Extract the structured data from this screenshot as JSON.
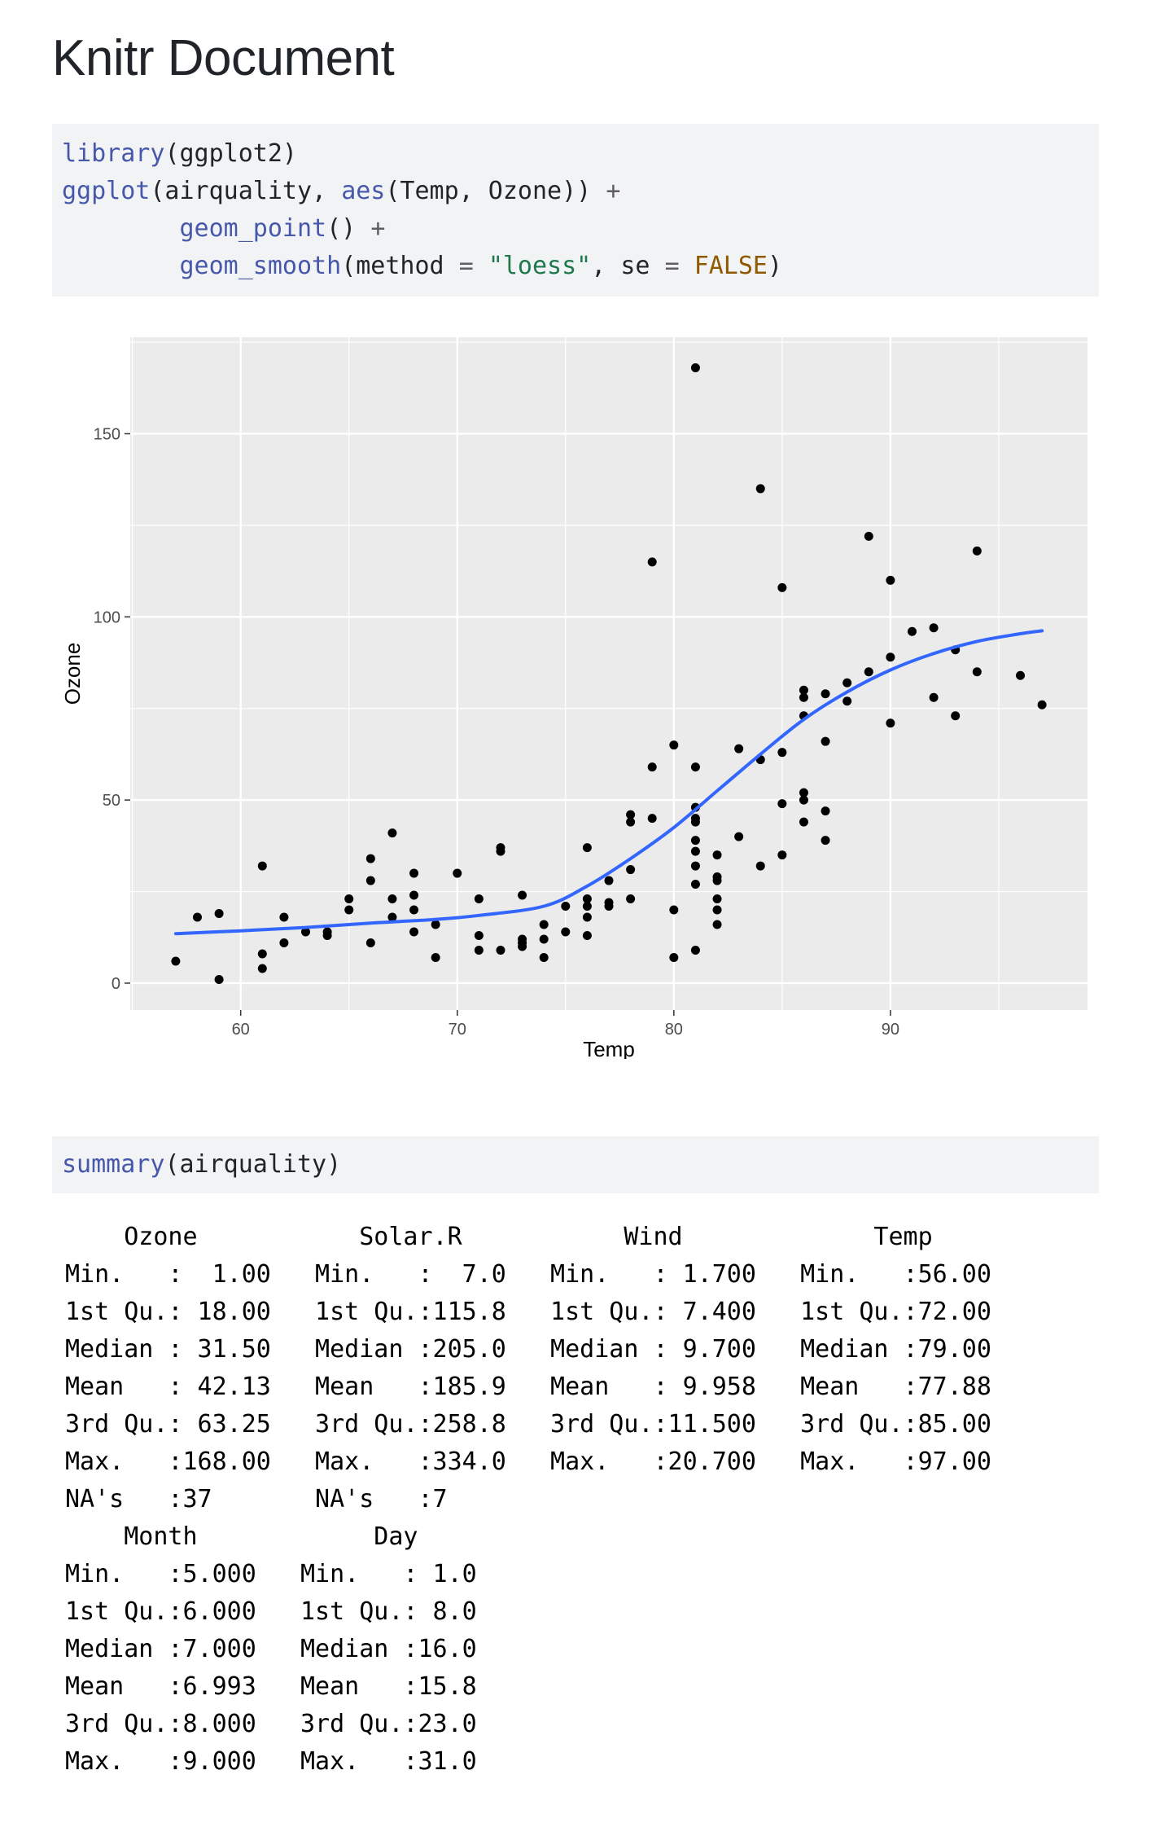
{
  "title": "Knitr Document",
  "code1": {
    "line1": {
      "fn": "library",
      "rest": "(ggplot2)"
    },
    "line2": {
      "fn1": "ggplot",
      "mid1": "(airquality, ",
      "fn2": "aes",
      "mid2": "(Temp, Ozone)) ",
      "plus": "+"
    },
    "line3": {
      "indent": "        ",
      "fn": "geom_point",
      "rest": "() ",
      "plus": "+"
    },
    "line4": {
      "indent": "        ",
      "fn": "geom_smooth",
      "a": "(method ",
      "eq1": "=",
      "b": " ",
      "str": "\"loess\"",
      "c": ", se ",
      "eq2": "=",
      "d": " ",
      "bool": "FALSE",
      "e": ")"
    }
  },
  "chart_data": {
    "type": "scatter",
    "xlabel": "Temp",
    "ylabel": "Ozone",
    "xlim": [
      54.9,
      99.1
    ],
    "ylim": [
      -7.35,
      176.35
    ],
    "xticks": [
      60,
      70,
      80,
      90
    ],
    "yticks": [
      0,
      50,
      100,
      150
    ],
    "xtick_labels": [
      "60",
      "70",
      "80",
      "90"
    ],
    "ytick_labels": [
      "0",
      "50",
      "100",
      "150"
    ],
    "grid": true,
    "points": [
      [
        57,
        6
      ],
      [
        58,
        18
      ],
      [
        59,
        1
      ],
      [
        59,
        19
      ],
      [
        61,
        32
      ],
      [
        61,
        8
      ],
      [
        61,
        4
      ],
      [
        62,
        18
      ],
      [
        62,
        11
      ],
      [
        63,
        14
      ],
      [
        64,
        14
      ],
      [
        64,
        13
      ],
      [
        65,
        20
      ],
      [
        65,
        23
      ],
      [
        66,
        34
      ],
      [
        66,
        28
      ],
      [
        66,
        11
      ],
      [
        67,
        41
      ],
      [
        67,
        23
      ],
      [
        67,
        18
      ],
      [
        68,
        30
      ],
      [
        68,
        24
      ],
      [
        68,
        20
      ],
      [
        68,
        14
      ],
      [
        69,
        16
      ],
      [
        69,
        7
      ],
      [
        70,
        30
      ],
      [
        71,
        23
      ],
      [
        71,
        13
      ],
      [
        71,
        9
      ],
      [
        72,
        37
      ],
      [
        72,
        36
      ],
      [
        72,
        9
      ],
      [
        73,
        24
      ],
      [
        73,
        12
      ],
      [
        73,
        11
      ],
      [
        73,
        10
      ],
      [
        74,
        16
      ],
      [
        74,
        12
      ],
      [
        74,
        7
      ],
      [
        75,
        21
      ],
      [
        75,
        14
      ],
      [
        76,
        37
      ],
      [
        76,
        23
      ],
      [
        76,
        21
      ],
      [
        76,
        18
      ],
      [
        76,
        13
      ],
      [
        77,
        28
      ],
      [
        77,
        22
      ],
      [
        77,
        21
      ],
      [
        78,
        46
      ],
      [
        78,
        44
      ],
      [
        78,
        31
      ],
      [
        78,
        23
      ],
      [
        79,
        115
      ],
      [
        79,
        59
      ],
      [
        79,
        45
      ],
      [
        80,
        65
      ],
      [
        80,
        20
      ],
      [
        80,
        7
      ],
      [
        81,
        168
      ],
      [
        81,
        59
      ],
      [
        81,
        48
      ],
      [
        81,
        45
      ],
      [
        81,
        44
      ],
      [
        81,
        39
      ],
      [
        81,
        36
      ],
      [
        81,
        32
      ],
      [
        81,
        27
      ],
      [
        81,
        9
      ],
      [
        82,
        35
      ],
      [
        82,
        29
      ],
      [
        82,
        28
      ],
      [
        82,
        23
      ],
      [
        82,
        20
      ],
      [
        82,
        16
      ],
      [
        83,
        64
      ],
      [
        83,
        40
      ],
      [
        84,
        135
      ],
      [
        84,
        61
      ],
      [
        84,
        32
      ],
      [
        85,
        108
      ],
      [
        85,
        63
      ],
      [
        85,
        49
      ],
      [
        85,
        35
      ],
      [
        86,
        80
      ],
      [
        86,
        78
      ],
      [
        86,
        73
      ],
      [
        86,
        52
      ],
      [
        86,
        50
      ],
      [
        86,
        44
      ],
      [
        87,
        79
      ],
      [
        87,
        66
      ],
      [
        87,
        47
      ],
      [
        87,
        39
      ],
      [
        88,
        82
      ],
      [
        88,
        77
      ],
      [
        89,
        122
      ],
      [
        89,
        85
      ],
      [
        90,
        110
      ],
      [
        90,
        89
      ],
      [
        90,
        71
      ],
      [
        91,
        96
      ],
      [
        92,
        97
      ],
      [
        92,
        78
      ],
      [
        93,
        91
      ],
      [
        93,
        73
      ],
      [
        94,
        118
      ],
      [
        94,
        85
      ],
      [
        96,
        84
      ],
      [
        97,
        76
      ]
    ],
    "smooth": [
      [
        57,
        13.5
      ],
      [
        60,
        14.3
      ],
      [
        63,
        15.2
      ],
      [
        66,
        16.4
      ],
      [
        69,
        17.4
      ],
      [
        71,
        18.5
      ],
      [
        74,
        21.0
      ],
      [
        76,
        26.5
      ],
      [
        78,
        34.0
      ],
      [
        80,
        42.5
      ],
      [
        82,
        52.5
      ],
      [
        84,
        62.5
      ],
      [
        86,
        72.0
      ],
      [
        88,
        79.5
      ],
      [
        90,
        85.5
      ],
      [
        92,
        90.0
      ],
      [
        94,
        93.3
      ],
      [
        96,
        95.4
      ],
      [
        97,
        96.2
      ]
    ],
    "point_color": "#000000",
    "line_color": "#3366ff",
    "panel_color": "#ebebeb"
  },
  "code2": {
    "fn": "summary",
    "rest": "(airquality)"
  },
  "output_lines": [
    "    Ozone           Solar.R           Wind             Temp     ",
    "Min.   :  1.00   Min.   :  7.0   Min.   : 1.700   Min.   :56.00  ",
    "1st Qu.: 18.00   1st Qu.:115.8   1st Qu.: 7.400   1st Qu.:72.00  ",
    "Median : 31.50   Median :205.0   Median : 9.700   Median :79.00  ",
    "Mean   : 42.13   Mean   :185.9   Mean   : 9.958   Mean   :77.88  ",
    "3rd Qu.: 63.25   3rd Qu.:258.8   3rd Qu.:11.500   3rd Qu.:85.00  ",
    "Max.   :168.00   Max.   :334.0   Max.   :20.700   Max.   :97.00  ",
    "NA's   :37       NA's   :7                                       ",
    "    Month            Day      ",
    "Min.   :5.000   Min.   : 1.0  ",
    "1st Qu.:6.000   1st Qu.: 8.0  ",
    "Median :7.000   Median :16.0  ",
    "Mean   :6.993   Mean   :15.8  ",
    "3rd Qu.:8.000   3rd Qu.:23.0  ",
    "Max.   :9.000   Max.   :31.0  "
  ]
}
